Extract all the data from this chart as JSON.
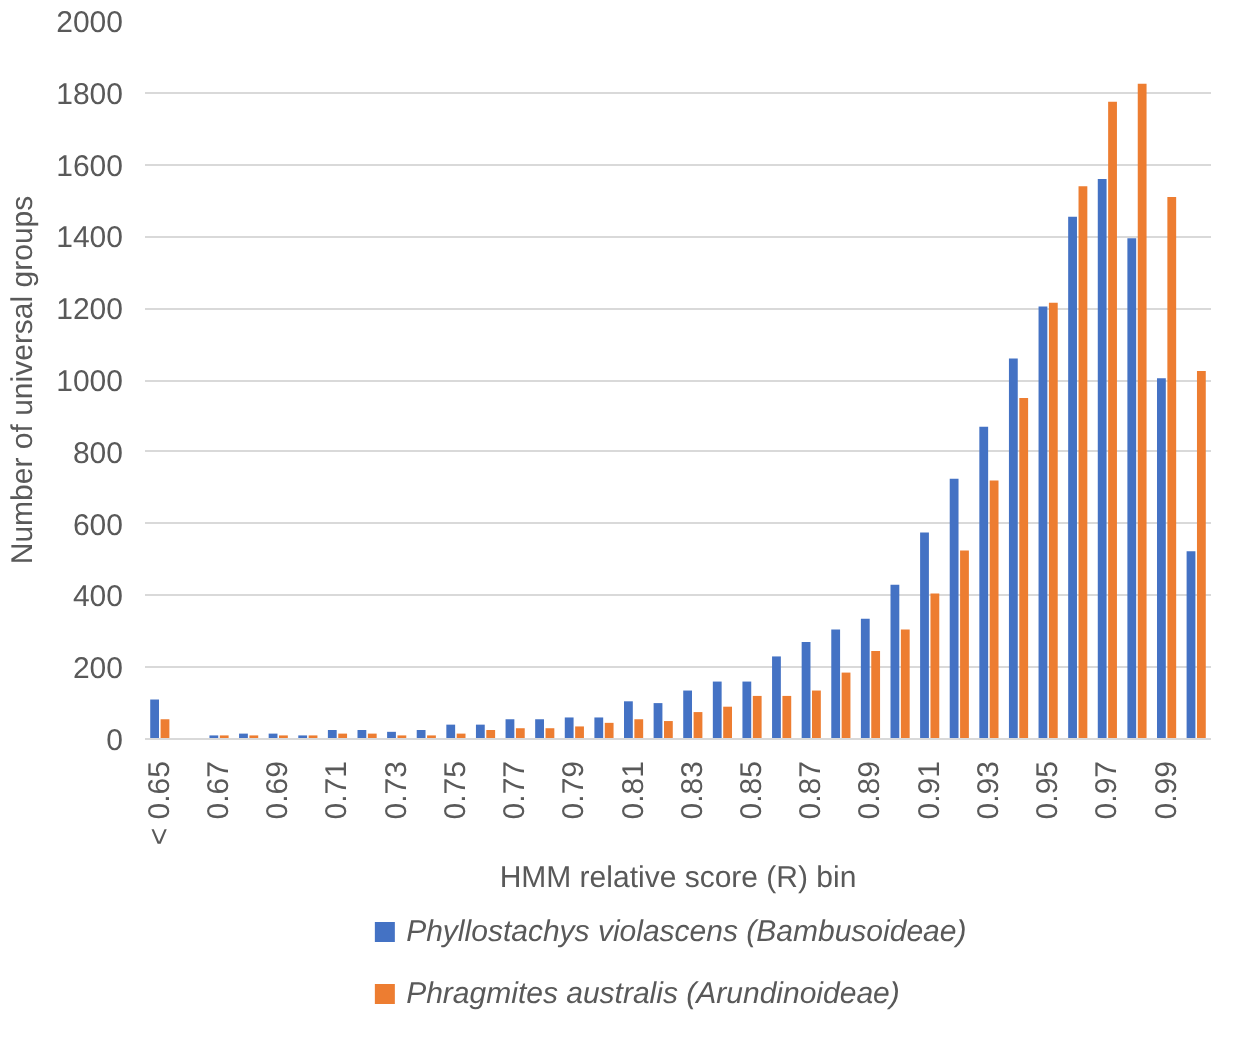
{
  "chart_data": {
    "type": "bar",
    "xlabel": "HMM relative score (R) bin",
    "ylabel": "Number of universal groups",
    "categories": [
      "< 0.65",
      null,
      "0.67",
      null,
      "0.69",
      null,
      "0.71",
      null,
      "0.73",
      null,
      "0.75",
      null,
      "0.77",
      null,
      "0.79",
      null,
      "0.81",
      null,
      "0.83",
      null,
      "0.85",
      null,
      "0.87",
      null,
      "0.89",
      null,
      "0.91",
      null,
      "0.93",
      null,
      "0.95",
      null,
      "0.97",
      null,
      "0.99",
      null
    ],
    "series": [
      {
        "name": "Phyllostachys violascens (Bambusoideae)",
        "color": "#4472c4",
        "values": [
          110,
          0,
          10,
          15,
          15,
          10,
          25,
          25,
          20,
          25,
          40,
          40,
          55,
          55,
          60,
          60,
          105,
          100,
          135,
          160,
          160,
          230,
          270,
          305,
          335,
          430,
          575,
          725,
          870,
          1060,
          1205,
          1455,
          1560,
          1395,
          1005,
          523
        ]
      },
      {
        "name": "Phragmites australis (Arundinoideae)",
        "color": "#ed7d31",
        "values": [
          55,
          0,
          10,
          10,
          10,
          10,
          15,
          15,
          10,
          10,
          15,
          25,
          30,
          30,
          35,
          45,
          55,
          50,
          75,
          90,
          120,
          120,
          135,
          185,
          245,
          305,
          405,
          525,
          720,
          950,
          1215,
          1540,
          1775,
          1825,
          1510,
          1025
        ]
      }
    ],
    "ylim": [
      0,
      2000
    ],
    "yticks": [
      0,
      200,
      400,
      600,
      800,
      1000,
      1200,
      1400,
      1600,
      1800,
      2000
    ],
    "grid": "y",
    "legend": "bottom"
  }
}
